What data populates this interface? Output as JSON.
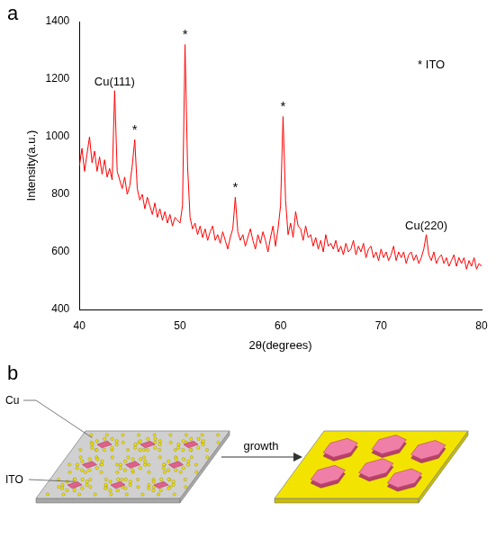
{
  "panel_labels": [
    "a",
    "b"
  ],
  "chart_data": {
    "type": "line",
    "x_label": "2θ(degrees)",
    "y_label": "Intensity(a.u.)",
    "color": "#ff0000",
    "grid": false,
    "xlim": [
      40,
      80
    ],
    "xticks": [
      40,
      50,
      60,
      70,
      80
    ],
    "ylim": [
      400,
      1400
    ],
    "yticks": [
      400,
      600,
      800,
      1000,
      1200,
      1400
    ],
    "x": [
      40,
      40.25,
      40.5,
      40.75,
      41,
      41.25,
      41.5,
      41.75,
      42,
      42.25,
      42.5,
      42.75,
      43,
      43.25,
      43.5,
      43.75,
      44,
      44.25,
      44.5,
      44.75,
      45,
      45.25,
      45.5,
      45.75,
      46,
      46.25,
      46.5,
      46.75,
      47,
      47.25,
      47.5,
      47.75,
      48,
      48.25,
      48.5,
      48.75,
      49,
      49.25,
      49.5,
      49.75,
      50,
      50.25,
      50.5,
      50.75,
      51,
      51.25,
      51.5,
      51.75,
      52,
      52.25,
      52.5,
      52.75,
      53,
      53.25,
      53.5,
      53.75,
      54,
      54.25,
      54.5,
      54.75,
      55,
      55.25,
      55.5,
      55.75,
      56,
      56.25,
      56.5,
      56.75,
      57,
      57.25,
      57.5,
      57.75,
      58,
      58.25,
      58.5,
      58.75,
      59,
      59.25,
      59.5,
      59.75,
      60,
      60.25,
      60.5,
      60.75,
      61,
      61.25,
      61.5,
      61.75,
      62,
      62.25,
      62.5,
      62.75,
      63,
      63.25,
      63.5,
      63.75,
      64,
      64.25,
      64.5,
      64.75,
      65,
      65.25,
      65.5,
      65.75,
      66,
      66.25,
      66.5,
      66.75,
      67,
      67.25,
      67.5,
      67.75,
      68,
      68.25,
      68.5,
      68.75,
      69,
      69.25,
      69.5,
      69.75,
      70,
      70.25,
      70.5,
      70.75,
      71,
      71.25,
      71.5,
      71.75,
      72,
      72.25,
      72.5,
      72.75,
      73,
      73.25,
      73.5,
      73.75,
      74,
      74.25,
      74.5,
      74.75,
      75,
      75.25,
      75.5,
      75.75,
      76,
      76.25,
      76.5,
      76.75,
      77,
      77.25,
      77.5,
      77.75,
      78,
      78.25,
      78.5,
      78.75,
      79,
      79.25,
      79.5,
      79.75,
      80
    ],
    "values": [
      900,
      960,
      880,
      940,
      1000,
      910,
      950,
      880,
      930,
      870,
      920,
      860,
      890,
      850,
      1160,
      880,
      850,
      820,
      860,
      800,
      830,
      900,
      990,
      820,
      780,
      800,
      750,
      790,
      760,
      730,
      770,
      720,
      750,
      710,
      740,
      700,
      730,
      690,
      720,
      710,
      700,
      760,
      1320,
      900,
      720,
      680,
      700,
      660,
      690,
      650,
      680,
      640,
      670,
      690,
      640,
      660,
      630,
      670,
      640,
      610,
      650,
      680,
      790,
      670,
      640,
      660,
      620,
      650,
      680,
      640,
      610,
      660,
      630,
      670,
      640,
      600,
      650,
      690,
      620,
      680,
      760,
      1070,
      780,
      660,
      700,
      650,
      740,
      690,
      680,
      640,
      690,
      650,
      660,
      620,
      650,
      610,
      640,
      600,
      660,
      620,
      630,
      610,
      640,
      600,
      620,
      590,
      630,
      600,
      610,
      640,
      590,
      620,
      600,
      630,
      580,
      610,
      620,
      580,
      600,
      570,
      610,
      580,
      600,
      570,
      590,
      620,
      570,
      600,
      580,
      600,
      560,
      590,
      600,
      570,
      590,
      560,
      580,
      610,
      660,
      590,
      570,
      600,
      560,
      580,
      590,
      560,
      580,
      550,
      570,
      590,
      550,
      580,
      560,
      580,
      540,
      570,
      550,
      580,
      540,
      560,
      550
    ],
    "annotations": [
      {
        "text": "Cu(111)",
        "x": 43.5,
        "y": 1160
      },
      {
        "text": "*",
        "x": 45.5,
        "y": 990
      },
      {
        "text": "*",
        "x": 50.5,
        "y": 1320
      },
      {
        "text": "*",
        "x": 55.5,
        "y": 790
      },
      {
        "text": "*",
        "x": 60.25,
        "y": 1070
      },
      {
        "text": "Cu(220)",
        "x": 74.5,
        "y": 660
      },
      {
        "text": "* ITO",
        "x": 75,
        "y": 1220
      }
    ]
  },
  "diagram": {
    "left_labels": [
      "Cu",
      "ITO"
    ],
    "arrow_label": "growth"
  }
}
